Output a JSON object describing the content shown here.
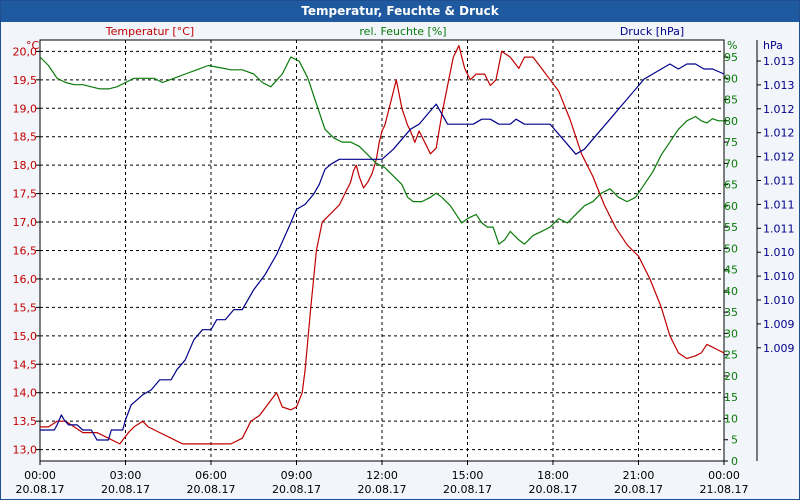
{
  "chart_data": {
    "type": "line",
    "title": "Temperatur, Feuchte & Druck",
    "x_range": [
      "20.08.17 00:00",
      "21.08.17 00:00"
    ],
    "x_ticks": [
      {
        "time": "00:00",
        "date": "20.08.17"
      },
      {
        "time": "03:00",
        "date": "20.08.17"
      },
      {
        "time": "06:00",
        "date": "20.08.17"
      },
      {
        "time": "09:00",
        "date": "20.08.17"
      },
      {
        "time": "12:00",
        "date": "20.08.17"
      },
      {
        "time": "15:00",
        "date": "20.08.17"
      },
      {
        "time": "18:00",
        "date": "20.08.17"
      },
      {
        "time": "21:00",
        "date": "20.08.17"
      },
      {
        "time": "00:00",
        "date": "21.08.17"
      }
    ],
    "grid": true,
    "axes": {
      "temp": {
        "label": "Temperatur [°C]",
        "unit": "°C",
        "ylim": [
          12.8,
          20.2
        ],
        "ticks": [
          "20,0",
          "19,5",
          "19,0",
          "18,5",
          "18,0",
          "17,5",
          "17,0",
          "16,5",
          "16,0",
          "15,5",
          "15,0",
          "14,5",
          "14,0",
          "13,5",
          "13,0"
        ],
        "color": "#c00000"
      },
      "hum": {
        "label": "rel. Feuchte [%]",
        "unit": "%",
        "ylim": [
          0,
          99
        ],
        "ticks": [
          "95",
          "90",
          "85",
          "80",
          "75",
          "70",
          "65",
          "60",
          "55",
          "50",
          "45",
          "40",
          "35",
          "30",
          "25",
          "20",
          "15",
          "10",
          "5",
          "0"
        ],
        "color": "#0a7a0a"
      },
      "press": {
        "label": "Druck [hPa]",
        "unit": "hPa",
        "ticks": [
          "1.013",
          "1.013",
          "1.012",
          "1.012",
          "1.012",
          "1.011",
          "1.011",
          "1.011",
          "1.010",
          "1.010",
          "1.010",
          "1.009",
          "1.009"
        ],
        "color": "#00008b"
      }
    },
    "series": [
      {
        "name": "Temperatur [°C]",
        "axis": "temp",
        "color": "#c00000",
        "points": [
          [
            0.0,
            13.4
          ],
          [
            0.3,
            13.4
          ],
          [
            0.6,
            13.5
          ],
          [
            0.9,
            13.5
          ],
          [
            1.2,
            13.4
          ],
          [
            1.5,
            13.3
          ],
          [
            1.8,
            13.3
          ],
          [
            2.0,
            13.3
          ],
          [
            2.4,
            13.2
          ],
          [
            2.8,
            13.1
          ],
          [
            3.1,
            13.3
          ],
          [
            3.3,
            13.4
          ],
          [
            3.6,
            13.5
          ],
          [
            3.8,
            13.4
          ],
          [
            4.2,
            13.3
          ],
          [
            4.6,
            13.2
          ],
          [
            5.0,
            13.1
          ],
          [
            5.3,
            13.1
          ],
          [
            5.7,
            13.1
          ],
          [
            6.0,
            13.1
          ],
          [
            6.3,
            13.1
          ],
          [
            6.7,
            13.1
          ],
          [
            7.1,
            13.2
          ],
          [
            7.4,
            13.5
          ],
          [
            7.7,
            13.6
          ],
          [
            8.0,
            13.8
          ],
          [
            8.3,
            14.0
          ],
          [
            8.5,
            13.75
          ],
          [
            8.8,
            13.7
          ],
          [
            9.0,
            13.75
          ],
          [
            9.2,
            14.0
          ],
          [
            9.3,
            14.4
          ],
          [
            9.5,
            15.5
          ],
          [
            9.7,
            16.5
          ],
          [
            9.9,
            17.0
          ],
          [
            10.1,
            17.1
          ],
          [
            10.3,
            17.2
          ],
          [
            10.5,
            17.3
          ],
          [
            10.7,
            17.5
          ],
          [
            10.9,
            17.7
          ],
          [
            11.0,
            17.9
          ],
          [
            11.1,
            18.0
          ],
          [
            11.2,
            17.8
          ],
          [
            11.35,
            17.6
          ],
          [
            11.5,
            17.7
          ],
          [
            11.65,
            17.85
          ],
          [
            11.8,
            18.1
          ],
          [
            11.9,
            18.4
          ],
          [
            12.0,
            18.6
          ],
          [
            12.1,
            18.7
          ],
          [
            12.3,
            19.1
          ],
          [
            12.5,
            19.5
          ],
          [
            12.7,
            19.0
          ],
          [
            12.9,
            18.7
          ],
          [
            13.0,
            18.6
          ],
          [
            13.15,
            18.4
          ],
          [
            13.3,
            18.6
          ],
          [
            13.5,
            18.4
          ],
          [
            13.7,
            18.2
          ],
          [
            13.9,
            18.3
          ],
          [
            14.1,
            18.9
          ],
          [
            14.3,
            19.4
          ],
          [
            14.5,
            19.9
          ],
          [
            14.7,
            20.1
          ],
          [
            14.9,
            19.7
          ],
          [
            15.1,
            19.5
          ],
          [
            15.3,
            19.6
          ],
          [
            15.6,
            19.6
          ],
          [
            15.8,
            19.4
          ],
          [
            16.0,
            19.5
          ],
          [
            16.2,
            20.0
          ],
          [
            16.5,
            19.9
          ],
          [
            16.8,
            19.7
          ],
          [
            17.0,
            19.9
          ],
          [
            17.3,
            19.9
          ],
          [
            17.6,
            19.7
          ],
          [
            17.9,
            19.5
          ],
          [
            18.2,
            19.3
          ],
          [
            18.6,
            18.8
          ],
          [
            19.0,
            18.2
          ],
          [
            19.4,
            17.8
          ],
          [
            19.8,
            17.3
          ],
          [
            20.2,
            16.9
          ],
          [
            20.6,
            16.6
          ],
          [
            21.0,
            16.4
          ],
          [
            21.4,
            16.0
          ],
          [
            21.8,
            15.5
          ],
          [
            22.1,
            15.0
          ],
          [
            22.4,
            14.7
          ],
          [
            22.7,
            14.6
          ],
          [
            23.0,
            14.65
          ],
          [
            23.2,
            14.7
          ],
          [
            23.4,
            14.85
          ],
          [
            23.6,
            14.8
          ],
          [
            23.8,
            14.75
          ],
          [
            24.0,
            14.7
          ]
        ]
      },
      {
        "name": "rel. Feuchte [%]",
        "axis": "hum",
        "color": "#0a7a0a",
        "points": [
          [
            0.0,
            95
          ],
          [
            0.3,
            93
          ],
          [
            0.6,
            90
          ],
          [
            0.9,
            89
          ],
          [
            1.2,
            88.5
          ],
          [
            1.5,
            88.5
          ],
          [
            1.8,
            88
          ],
          [
            2.1,
            87.5
          ],
          [
            2.4,
            87.5
          ],
          [
            2.7,
            88
          ],
          [
            3.0,
            89
          ],
          [
            3.3,
            90
          ],
          [
            3.7,
            90
          ],
          [
            4.0,
            90
          ],
          [
            4.3,
            89
          ],
          [
            4.7,
            90
          ],
          [
            5.1,
            91
          ],
          [
            5.5,
            92
          ],
          [
            5.9,
            93
          ],
          [
            6.3,
            92.5
          ],
          [
            6.7,
            92
          ],
          [
            7.1,
            92
          ],
          [
            7.5,
            91
          ],
          [
            7.8,
            89
          ],
          [
            8.1,
            88
          ],
          [
            8.5,
            91
          ],
          [
            8.8,
            95
          ],
          [
            9.1,
            94
          ],
          [
            9.4,
            90
          ],
          [
            9.7,
            84
          ],
          [
            10.0,
            78
          ],
          [
            10.3,
            76
          ],
          [
            10.6,
            75
          ],
          [
            10.9,
            75
          ],
          [
            11.2,
            74
          ],
          [
            11.5,
            72
          ],
          [
            11.8,
            70
          ],
          [
            12.1,
            69
          ],
          [
            12.4,
            67
          ],
          [
            12.7,
            65
          ],
          [
            12.9,
            62
          ],
          [
            13.1,
            61
          ],
          [
            13.4,
            61
          ],
          [
            13.7,
            62
          ],
          [
            13.9,
            63
          ],
          [
            14.1,
            62
          ],
          [
            14.4,
            60
          ],
          [
            14.6,
            58
          ],
          [
            14.8,
            56
          ],
          [
            15.0,
            57
          ],
          [
            15.3,
            58
          ],
          [
            15.5,
            56
          ],
          [
            15.7,
            55
          ],
          [
            15.9,
            55
          ],
          [
            16.1,
            51
          ],
          [
            16.3,
            52
          ],
          [
            16.5,
            54
          ],
          [
            16.8,
            52
          ],
          [
            17.0,
            51
          ],
          [
            17.3,
            53
          ],
          [
            17.6,
            54
          ],
          [
            17.9,
            55
          ],
          [
            18.2,
            57
          ],
          [
            18.5,
            56
          ],
          [
            18.8,
            58
          ],
          [
            19.1,
            60
          ],
          [
            19.4,
            61
          ],
          [
            19.7,
            63
          ],
          [
            20.0,
            64
          ],
          [
            20.3,
            62
          ],
          [
            20.6,
            61
          ],
          [
            20.9,
            62
          ],
          [
            21.2,
            65
          ],
          [
            21.5,
            68
          ],
          [
            21.8,
            72
          ],
          [
            22.1,
            75
          ],
          [
            22.4,
            78
          ],
          [
            22.7,
            80
          ],
          [
            23.0,
            81
          ],
          [
            23.2,
            80
          ],
          [
            23.4,
            79.5
          ],
          [
            23.6,
            80.5
          ],
          [
            23.8,
            80
          ],
          [
            24.0,
            80
          ]
        ]
      },
      {
        "name": "Druck [hPa]",
        "axis": "press",
        "color": "#00008b",
        "points": [
          [
            0.0,
            1008.95
          ],
          [
            0.5,
            1008.95
          ],
          [
            0.6,
            1009.0
          ],
          [
            0.75,
            1009.1
          ],
          [
            0.85,
            1009.05
          ],
          [
            1.0,
            1009.0
          ],
          [
            1.3,
            1009.0
          ],
          [
            1.5,
            1008.95
          ],
          [
            1.8,
            1008.95
          ],
          [
            2.0,
            1008.85
          ],
          [
            2.4,
            1008.85
          ],
          [
            2.5,
            1008.95
          ],
          [
            2.9,
            1008.95
          ],
          [
            3.0,
            1009.05
          ],
          [
            3.2,
            1009.2
          ],
          [
            3.6,
            1009.3
          ],
          [
            3.9,
            1009.35
          ],
          [
            4.2,
            1009.45
          ],
          [
            4.6,
            1009.45
          ],
          [
            4.8,
            1009.55
          ],
          [
            5.1,
            1009.65
          ],
          [
            5.4,
            1009.85
          ],
          [
            5.7,
            1009.95
          ],
          [
            6.0,
            1009.95
          ],
          [
            6.2,
            1010.05
          ],
          [
            6.5,
            1010.05
          ],
          [
            6.8,
            1010.15
          ],
          [
            7.1,
            1010.15
          ],
          [
            7.5,
            1010.35
          ],
          [
            7.9,
            1010.5
          ],
          [
            8.3,
            1010.7
          ],
          [
            8.7,
            1010.95
          ],
          [
            9.0,
            1011.15
          ],
          [
            9.3,
            1011.2
          ],
          [
            9.6,
            1011.3
          ],
          [
            9.8,
            1011.4
          ],
          [
            10.0,
            1011.55
          ],
          [
            10.2,
            1011.6
          ],
          [
            10.5,
            1011.65
          ],
          [
            11.0,
            1011.65
          ],
          [
            11.5,
            1011.65
          ],
          [
            12.0,
            1011.65
          ],
          [
            12.4,
            1011.75
          ],
          [
            12.7,
            1011.85
          ],
          [
            13.0,
            1011.95
          ],
          [
            13.3,
            1012.0
          ],
          [
            13.6,
            1012.1
          ],
          [
            13.9,
            1012.2
          ],
          [
            14.1,
            1012.1
          ],
          [
            14.3,
            1012.0
          ],
          [
            14.6,
            1012.0
          ],
          [
            14.9,
            1012.0
          ],
          [
            15.2,
            1012.0
          ],
          [
            15.5,
            1012.05
          ],
          [
            15.8,
            1012.05
          ],
          [
            16.1,
            1012.0
          ],
          [
            16.5,
            1012.0
          ],
          [
            16.7,
            1012.05
          ],
          [
            17.0,
            1012.0
          ],
          [
            17.3,
            1012.0
          ],
          [
            17.6,
            1012.0
          ],
          [
            17.9,
            1012.0
          ],
          [
            18.2,
            1011.9
          ],
          [
            18.5,
            1011.8
          ],
          [
            18.8,
            1011.7
          ],
          [
            19.1,
            1011.75
          ],
          [
            19.4,
            1011.85
          ],
          [
            19.7,
            1011.95
          ],
          [
            20.0,
            1012.05
          ],
          [
            20.3,
            1012.15
          ],
          [
            20.6,
            1012.25
          ],
          [
            20.9,
            1012.35
          ],
          [
            21.2,
            1012.45
          ],
          [
            21.5,
            1012.5
          ],
          [
            21.8,
            1012.55
          ],
          [
            22.1,
            1012.6
          ],
          [
            22.4,
            1012.55
          ],
          [
            22.7,
            1012.6
          ],
          [
            23.0,
            1012.6
          ],
          [
            23.3,
            1012.55
          ],
          [
            23.6,
            1012.55
          ],
          [
            24.0,
            1012.5
          ]
        ]
      }
    ]
  }
}
